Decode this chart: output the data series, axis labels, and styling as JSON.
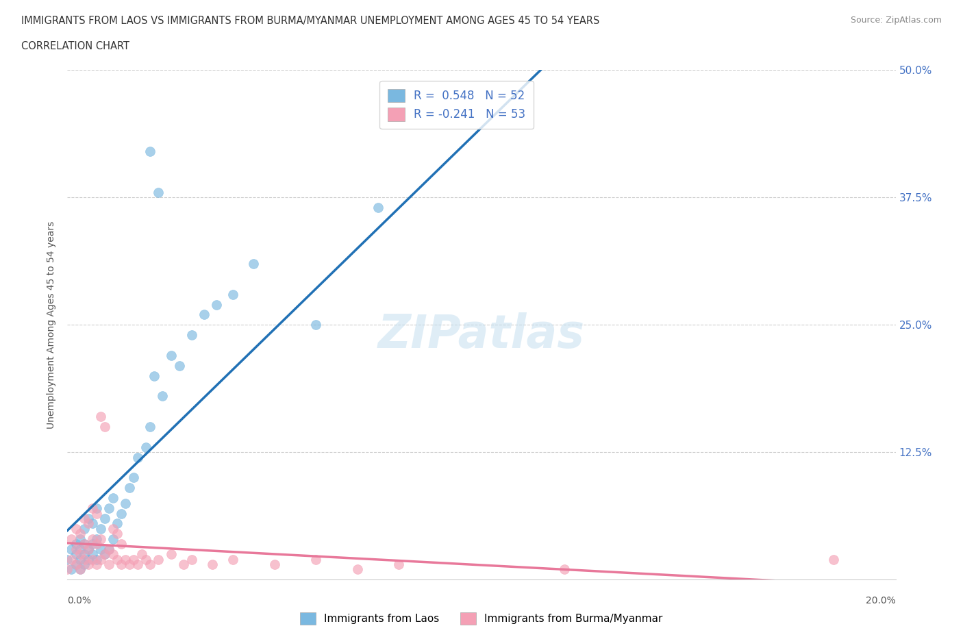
{
  "title_line1": "IMMIGRANTS FROM LAOS VS IMMIGRANTS FROM BURMA/MYANMAR UNEMPLOYMENT AMONG AGES 45 TO 54 YEARS",
  "title_line2": "CORRELATION CHART",
  "source": "Source: ZipAtlas.com",
  "ylabel": "Unemployment Among Ages 45 to 54 years",
  "xlim": [
    0,
    0.2
  ],
  "ylim": [
    0,
    0.5
  ],
  "yticks": [
    0,
    0.125,
    0.25,
    0.375,
    0.5
  ],
  "ytick_labels": [
    "",
    "12.5%",
    "25.0%",
    "37.5%",
    "50.0%"
  ],
  "watermark": "ZIPatlas",
  "laos_color": "#7ab8e0",
  "burma_color": "#f4a0b5",
  "laos_line_color": "#2171b5",
  "burma_line_color": "#e8789a",
  "dash_color": "#aaaaaa",
  "laos_R": 0.548,
  "laos_N": 52,
  "burma_R": -0.241,
  "burma_N": 53,
  "laos_scatter_x": [
    0.0,
    0.001,
    0.001,
    0.002,
    0.002,
    0.002,
    0.003,
    0.003,
    0.003,
    0.003,
    0.004,
    0.004,
    0.004,
    0.004,
    0.005,
    0.005,
    0.005,
    0.006,
    0.006,
    0.006,
    0.007,
    0.007,
    0.007,
    0.008,
    0.008,
    0.009,
    0.009,
    0.01,
    0.01,
    0.011,
    0.011,
    0.012,
    0.013,
    0.014,
    0.015,
    0.016,
    0.017,
    0.019,
    0.02,
    0.021,
    0.023,
    0.025,
    0.027,
    0.03,
    0.033,
    0.036,
    0.04,
    0.045,
    0.02,
    0.022,
    0.06,
    0.075
  ],
  "laos_scatter_y": [
    0.02,
    0.01,
    0.03,
    0.015,
    0.025,
    0.035,
    0.01,
    0.02,
    0.03,
    0.04,
    0.015,
    0.025,
    0.035,
    0.05,
    0.02,
    0.03,
    0.06,
    0.025,
    0.035,
    0.055,
    0.02,
    0.04,
    0.07,
    0.03,
    0.05,
    0.025,
    0.06,
    0.03,
    0.07,
    0.04,
    0.08,
    0.055,
    0.065,
    0.075,
    0.09,
    0.1,
    0.12,
    0.13,
    0.15,
    0.2,
    0.18,
    0.22,
    0.21,
    0.24,
    0.26,
    0.27,
    0.28,
    0.31,
    0.42,
    0.38,
    0.25,
    0.365
  ],
  "burma_scatter_x": [
    0.0,
    0.001,
    0.001,
    0.002,
    0.002,
    0.002,
    0.003,
    0.003,
    0.003,
    0.004,
    0.004,
    0.004,
    0.005,
    0.005,
    0.005,
    0.006,
    0.006,
    0.006,
    0.007,
    0.007,
    0.007,
    0.008,
    0.008,
    0.008,
    0.009,
    0.009,
    0.01,
    0.01,
    0.011,
    0.011,
    0.012,
    0.012,
    0.013,
    0.013,
    0.014,
    0.015,
    0.016,
    0.017,
    0.018,
    0.019,
    0.02,
    0.022,
    0.025,
    0.028,
    0.03,
    0.035,
    0.04,
    0.05,
    0.06,
    0.07,
    0.08,
    0.12,
    0.185
  ],
  "burma_scatter_y": [
    0.01,
    0.02,
    0.04,
    0.015,
    0.03,
    0.05,
    0.01,
    0.025,
    0.045,
    0.02,
    0.035,
    0.06,
    0.015,
    0.03,
    0.055,
    0.02,
    0.04,
    0.07,
    0.015,
    0.035,
    0.065,
    0.02,
    0.04,
    0.16,
    0.025,
    0.15,
    0.015,
    0.03,
    0.025,
    0.05,
    0.02,
    0.045,
    0.015,
    0.035,
    0.02,
    0.015,
    0.02,
    0.015,
    0.025,
    0.02,
    0.015,
    0.02,
    0.025,
    0.015,
    0.02,
    0.015,
    0.02,
    0.015,
    0.02,
    0.01,
    0.015,
    0.01,
    0.02
  ],
  "legend_label_laos": "Immigrants from Laos",
  "legend_label_burma": "Immigrants from Burma/Myanmar"
}
